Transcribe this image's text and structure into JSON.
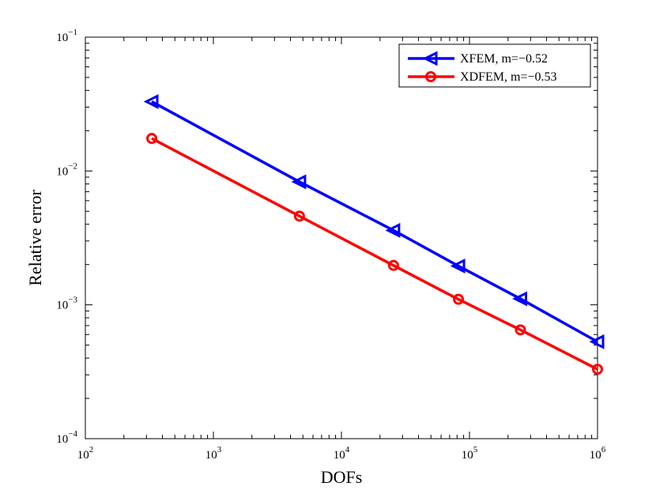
{
  "chart_data": {
    "type": "line",
    "title": "",
    "xlabel": "DOFs",
    "ylabel": "Relative error",
    "xscale": "log",
    "yscale": "log",
    "xlim": [
      100,
      1000000
    ],
    "ylim": [
      0.0001,
      0.1
    ],
    "x_ticks": [
      {
        "base": "10",
        "exp": "2",
        "value": 100
      },
      {
        "base": "10",
        "exp": "3",
        "value": 1000
      },
      {
        "base": "10",
        "exp": "4",
        "value": 10000
      },
      {
        "base": "10",
        "exp": "5",
        "value": 100000
      },
      {
        "base": "10",
        "exp": "6",
        "value": 1000000
      }
    ],
    "y_ticks": [
      {
        "base": "10",
        "exp": "−4",
        "value": 0.0001
      },
      {
        "base": "10",
        "exp": "−3",
        "value": 0.001
      },
      {
        "base": "10",
        "exp": "−2",
        "value": 0.01
      },
      {
        "base": "10",
        "exp": "−1",
        "value": 0.1
      }
    ],
    "grid": false,
    "legend_position": "top-right",
    "series": [
      {
        "name": "XFEM, m=−0.52",
        "color": "#0000ff",
        "marker": "triangle-left",
        "x": [
          330,
          4700,
          25500,
          82000,
          250000,
          1000000
        ],
        "y": [
          0.033,
          0.0083,
          0.0036,
          0.00195,
          0.00111,
          0.00053
        ]
      },
      {
        "name": "XDFEM, m=−0.53",
        "color": "#ff0000",
        "marker": "circle",
        "x": [
          330,
          4700,
          25500,
          82000,
          250000,
          1000000
        ],
        "y": [
          0.0175,
          0.0046,
          0.00197,
          0.0011,
          0.00065,
          0.00033
        ]
      }
    ]
  }
}
